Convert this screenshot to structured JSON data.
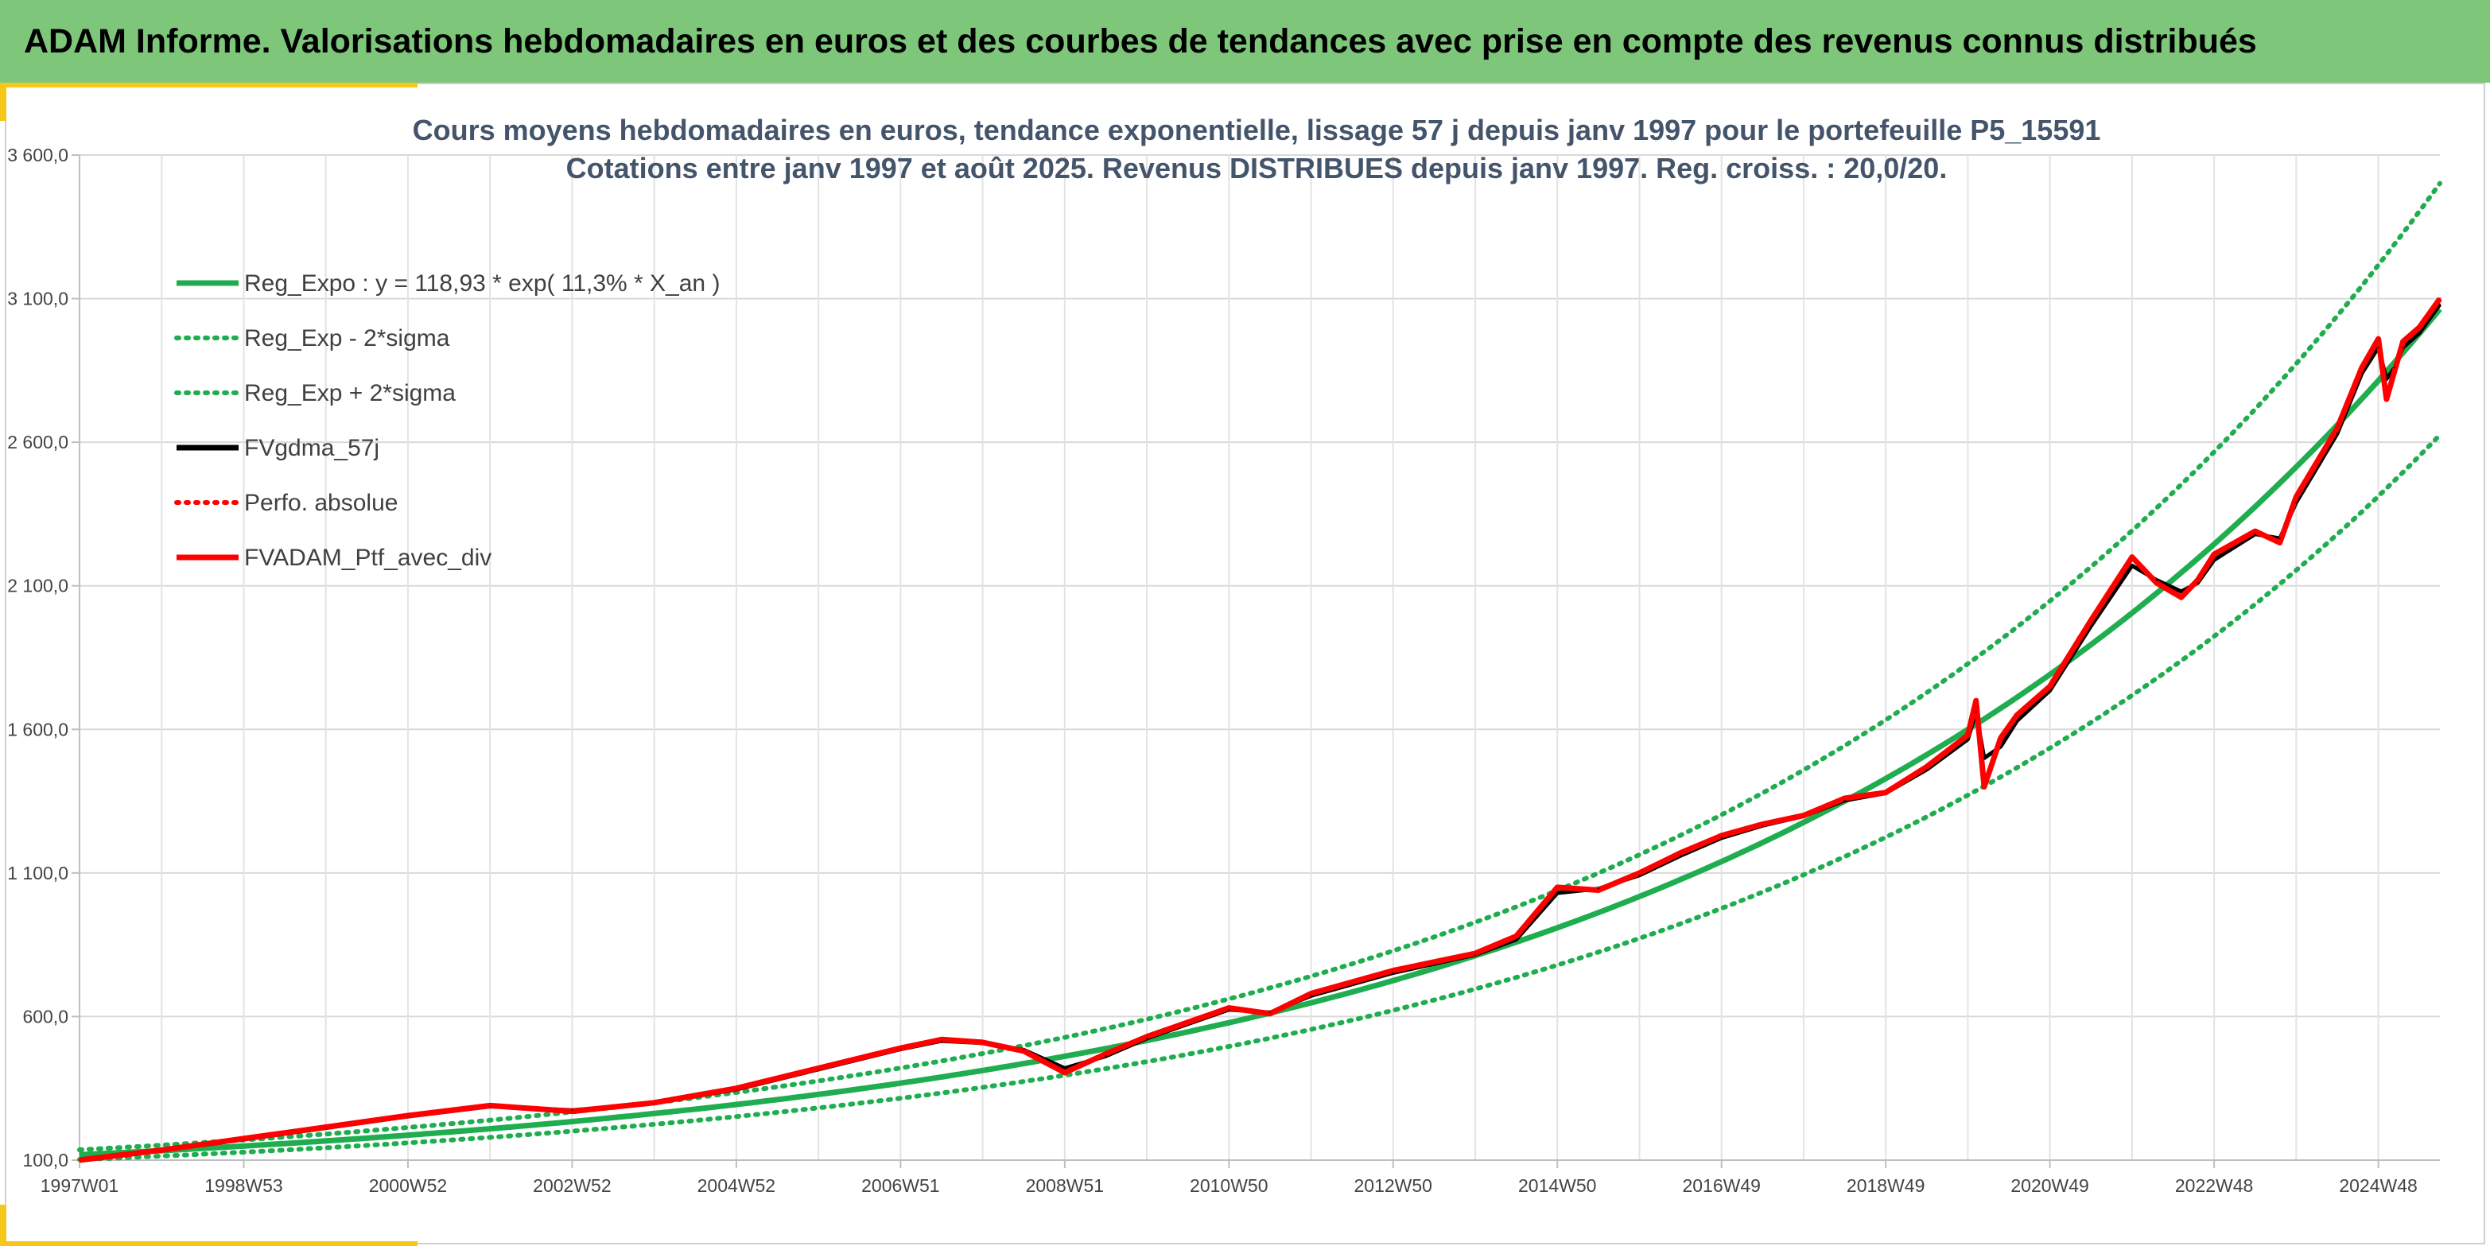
{
  "banner": {
    "title": "ADAM Informe. Valorisations hebdomadaires en euros et des courbes de tendances avec prise en compte des revenus connus distribués"
  },
  "colors": {
    "banner": "#7dc67a",
    "accent": "#f6c81a",
    "regression": "#1fad50",
    "fvgdma": "#000000",
    "ptf": "#ff0000",
    "perfo": "#ff0000"
  },
  "chart_data": {
    "type": "line",
    "title_lines": [
      "Cours moyens hebdomadaires en euros, tendance exponentielle, lissage 57 j depuis janv 1997 pour le portefeuille P5_15591",
      "Cotations entre janv 1997 et août 2025. Revenus DISTRIBUES depuis janv 1997. Reg. croiss. : 20,0/20."
    ],
    "y_ticks": [
      "100,0",
      "600,0",
      "1 100,0",
      "1 600,0",
      "2 100,0",
      "2 600,0",
      "3 100,0",
      "3 600,0"
    ],
    "ylim": [
      100,
      3600
    ],
    "y_tick_step": 500,
    "x_ticks": [
      "1997W01",
      "1998W53",
      "2000W52",
      "2002W52",
      "2004W52",
      "2006W51",
      "2008W51",
      "2010W50",
      "2012W50",
      "2014W50",
      "2016W49",
      "2018W49",
      "2020W49",
      "2022W48",
      "2024W48"
    ],
    "x_tick_years": [
      1997.0,
      1999.0,
      2001.0,
      2003.0,
      2005.0,
      2007.0,
      2009.0,
      2011.0,
      2013.0,
      2015.0,
      2017.0,
      2019.0,
      2021.0,
      2023.0,
      2025.0
    ],
    "x_range_years": [
      1997.0,
      2025.75
    ],
    "grid": true,
    "legend": "top-left",
    "regression": {
      "a": 118.93,
      "rate": 0.113,
      "sigma_factor": 0.143
    },
    "legend_items": [
      {
        "name": "Reg_Expo : y = 118,93 * exp( 11,3% *  X_an )",
        "style": "solid",
        "color": "#1fad50"
      },
      {
        "name": "Reg_Exp - 2*sigma",
        "style": "dotted",
        "color": "#1fad50"
      },
      {
        "name": "Reg_Exp + 2*sigma",
        "style": "dotted",
        "color": "#1fad50"
      },
      {
        "name": "FVgdma_57j",
        "style": "solid",
        "color": "#000000"
      },
      {
        "name": "Perfo. absolue",
        "style": "dotted",
        "color": "#ff0000"
      },
      {
        "name": "FVADAM_Ptf_avec_div",
        "style": "solid",
        "color": "#ff0000"
      }
    ],
    "series": [
      {
        "name": "FVADAM_Ptf_avec_div",
        "x": [
          1997.0,
          1998.0,
          1999.0,
          2000.0,
          2001.0,
          2002.0,
          2003.0,
          2004.0,
          2005.0,
          2006.0,
          2007.0,
          2007.5,
          2008.0,
          2008.5,
          2009.0,
          2009.5,
          2010.0,
          2011.0,
          2011.5,
          2012.0,
          2013.0,
          2014.0,
          2014.5,
          2015.0,
          2015.5,
          2016.0,
          2016.5,
          2017.0,
          2017.5,
          2018.0,
          2018.5,
          2019.0,
          2019.5,
          2020.0,
          2020.1,
          2020.2,
          2020.4,
          2020.6,
          2021.0,
          2021.5,
          2022.0,
          2022.3,
          2022.6,
          2022.8,
          2023.0,
          2023.5,
          2023.8,
          2024.0,
          2024.5,
          2024.8,
          2025.0,
          2025.1,
          2025.2,
          2025.3,
          2025.5,
          2025.75
        ],
        "y": [
          100,
          135,
          175,
          215,
          255,
          290,
          270,
          300,
          350,
          420,
          490,
          520,
          510,
          480,
          405,
          470,
          530,
          630,
          610,
          680,
          760,
          820,
          880,
          1050,
          1040,
          1100,
          1170,
          1230,
          1270,
          1300,
          1360,
          1380,
          1470,
          1580,
          1700,
          1400,
          1570,
          1650,
          1750,
          1980,
          2200,
          2110,
          2060,
          2120,
          2210,
          2290,
          2250,
          2410,
          2650,
          2860,
          2960,
          2750,
          2850,
          2950,
          3000,
          3100
        ]
      },
      {
        "name": "FVgdma_57j",
        "x": [
          1997.0,
          1998.0,
          1999.0,
          2000.0,
          2001.0,
          2002.0,
          2003.0,
          2004.0,
          2005.0,
          2006.0,
          2007.0,
          2007.5,
          2008.0,
          2008.5,
          2009.0,
          2009.5,
          2010.0,
          2011.0,
          2011.5,
          2012.0,
          2013.0,
          2014.0,
          2014.5,
          2015.0,
          2015.5,
          2016.0,
          2016.5,
          2017.0,
          2017.5,
          2018.0,
          2018.5,
          2019.0,
          2019.5,
          2020.0,
          2020.1,
          2020.2,
          2020.4,
          2020.6,
          2021.0,
          2021.5,
          2022.0,
          2022.3,
          2022.6,
          2022.8,
          2023.0,
          2023.5,
          2023.8,
          2024.0,
          2024.5,
          2024.8,
          2025.0,
          2025.1,
          2025.2,
          2025.3,
          2025.5,
          2025.75
        ],
        "y": [
          100,
          133,
          172,
          212,
          252,
          287,
          274,
          298,
          346,
          416,
          486,
          515,
          508,
          484,
          420,
          462,
          524,
          624,
          614,
          672,
          752,
          815,
          868,
          1030,
          1045,
          1092,
          1160,
          1222,
          1265,
          1298,
          1352,
          1378,
          1460,
          1565,
          1660,
          1500,
          1540,
          1630,
          1735,
          1960,
          2170,
          2120,
          2080,
          2110,
          2190,
          2280,
          2265,
          2390,
          2630,
          2840,
          2930,
          2820,
          2860,
          2930,
          2980,
          3080
        ]
      }
    ]
  }
}
